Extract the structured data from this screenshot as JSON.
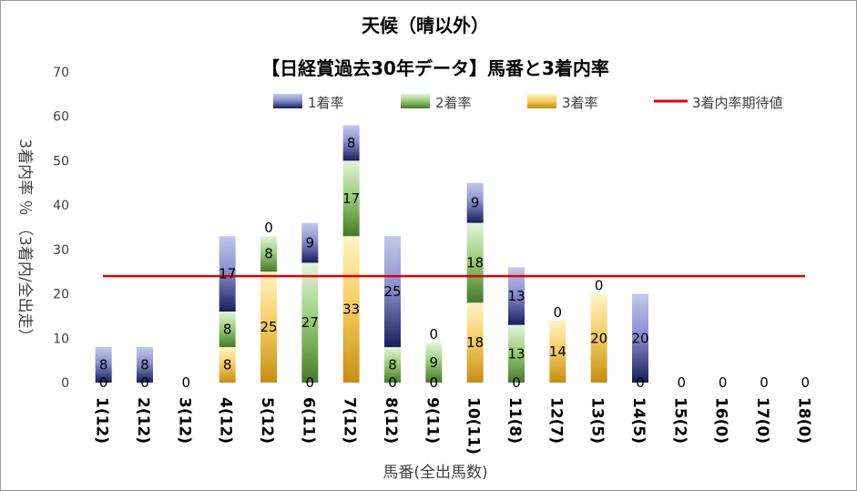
{
  "chart_data": {
    "type": "bar",
    "stacked": true,
    "title": "天候（晴以外）",
    "subtitle": "【日経賞過去30年データ】馬番と3着内率",
    "xlabel": "馬番(全出馬数)",
    "ylabel": "3着内率 ％ （3着内/全出走）",
    "ylim": [
      0,
      70
    ],
    "yticks": [
      "0",
      "10",
      "20",
      "30",
      "40",
      "50",
      "60",
      "70"
    ],
    "categories": [
      "1(12)",
      "2(12)",
      "3(12)",
      "4(12)",
      "5(12)",
      "6(11)",
      "7(12)",
      "8(12)",
      "9(11)",
      "10(11)",
      "11(8)",
      "12(7)",
      "13(5)",
      "14(5)",
      "15(2)",
      "16(0)",
      "17(0)",
      "18(0)"
    ],
    "series": [
      {
        "name": "3着率",
        "values": [
          0,
          0,
          0,
          8,
          25,
          0,
          33,
          0,
          0,
          18,
          0,
          14,
          20,
          0,
          0,
          0,
          0,
          0
        ],
        "labels": [
          "",
          "",
          "",
          "8",
          "25",
          "",
          "33",
          "",
          "",
          "18",
          "",
          "14",
          "20",
          "",
          "",
          "",
          "",
          ""
        ],
        "color": "#d9a630"
      },
      {
        "name": "2着率",
        "values": [
          0,
          0,
          0,
          8,
          8,
          27,
          17,
          8,
          9,
          18,
          13,
          0,
          0,
          0,
          0,
          0,
          0,
          0
        ],
        "labels": [
          "",
          "",
          "",
          "8",
          "8",
          "27",
          "17",
          "8",
          "9",
          "18",
          "13",
          "0",
          "0",
          "",
          "",
          "",
          "",
          ""
        ],
        "color": "#70ad47"
      },
      {
        "name": "1着率",
        "values": [
          8,
          8,
          0,
          17,
          0,
          9,
          8,
          25,
          0,
          9,
          13,
          0,
          0,
          20,
          0,
          0,
          0,
          0
        ],
        "labels": [
          "8",
          "8",
          "",
          "17",
          "0",
          "9",
          "8",
          "25",
          "0",
          "9",
          "13",
          "",
          "",
          "20",
          "",
          "",
          "",
          ""
        ],
        "color": "#4a4f9c"
      }
    ],
    "zero_labels": [
      "0",
      "0",
      "0",
      "",
      "",
      "0",
      "",
      "0",
      "0",
      "",
      "0",
      "",
      "",
      "0",
      "0",
      "0",
      "0",
      "0"
    ],
    "expected_line": {
      "name": "3着内率期待値",
      "value": 24,
      "color": "#e00000"
    },
    "legend_position": "top"
  }
}
